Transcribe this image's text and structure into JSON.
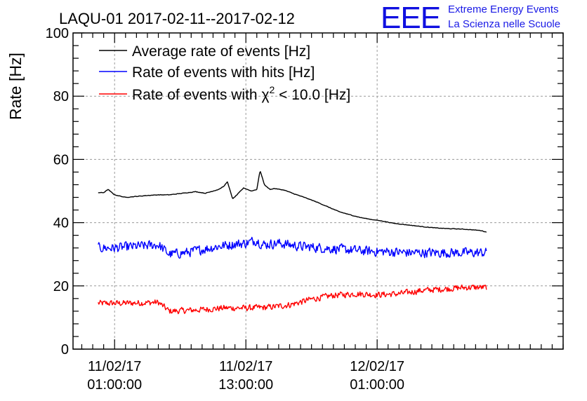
{
  "header": {
    "title": "LAQU-01 2017-02-11--2017-02-12",
    "logo_mark": "EEE",
    "logo_line1": "Extreme Energy Events",
    "logo_line2": "La Scienza nelle Scuole"
  },
  "colors": {
    "average": "#000000",
    "hits": "#0000ff",
    "chi2": "#ff0000",
    "logo": "#1010e0",
    "grid": "#9a9a9a"
  },
  "chart_data": {
    "type": "line",
    "title": "LAQU-01 2017-02-11--2017-02-12",
    "ylabel": "Rate [Hz]",
    "xlabel": "",
    "x_unit": "hours since 2017-02-11 00:00",
    "xlim": [
      -2.8,
      42
    ],
    "ylim": [
      0,
      100
    ],
    "yticks": [
      0,
      20,
      40,
      60,
      80,
      100
    ],
    "xticks": [
      {
        "x": 1,
        "line1": "11/02/17",
        "line2": "01:00:00"
      },
      {
        "x": 13,
        "line1": "11/02/17",
        "line2": "13:00:00"
      },
      {
        "x": 25,
        "line1": "12/02/17",
        "line2": "01:00:00"
      }
    ],
    "grid": true,
    "legend_position": "top-left",
    "series": [
      {
        "name": "Average rate of events [Hz]",
        "color": "#000000",
        "noise": 0.1,
        "x": [
          -0.5,
          0.0,
          0.4,
          1.0,
          2.0,
          3.0,
          4.0,
          5.0,
          6.0,
          7.0,
          7.7,
          8.4,
          9.3,
          10.0,
          10.5,
          11.0,
          11.3,
          11.8,
          12.3,
          12.8,
          13.5,
          14.0,
          14.3,
          14.7,
          15.2,
          15.6,
          16.5,
          17.5,
          18.5,
          19.5,
          20.5,
          21.5,
          22.5,
          23.5,
          24.5,
          25.5,
          26.5,
          27.5,
          28.5,
          29.5,
          30.5,
          31.5,
          32.5,
          33.5,
          34.5,
          35.0
        ],
        "y": [
          49.5,
          49.5,
          50.5,
          48.8,
          48.0,
          48.3,
          48.6,
          48.8,
          48.8,
          49.2,
          49.5,
          49.8,
          49.3,
          50.0,
          50.5,
          51.5,
          53.0,
          47.5,
          49.2,
          51.0,
          50.0,
          50.5,
          56.5,
          52.0,
          50.5,
          50.8,
          50.3,
          49.0,
          47.8,
          46.5,
          45.0,
          43.5,
          42.5,
          41.6,
          41.0,
          40.5,
          39.8,
          39.4,
          39.0,
          38.6,
          38.3,
          38.1,
          38.0,
          37.8,
          37.5,
          37.0
        ]
      },
      {
        "name": "Rate of events with hits [Hz]",
        "color": "#0000ff",
        "noise": 1.9,
        "x": [
          -0.5,
          1.0,
          3.0,
          5.0,
          6.0,
          7.5,
          9.0,
          10.5,
          12.0,
          13.0,
          14.0,
          14.5,
          16.0,
          18.0,
          20.0,
          22.0,
          24.0,
          26.0,
          28.0,
          30.0,
          32.0,
          34.0,
          35.0
        ],
        "y": [
          32.0,
          32.0,
          32.5,
          33.0,
          30.0,
          30.5,
          31.5,
          32.5,
          33.2,
          33.5,
          34.5,
          33.0,
          33.5,
          32.5,
          32.0,
          31.5,
          31.0,
          30.8,
          30.5,
          30.5,
          30.5,
          30.5,
          30.5
        ]
      },
      {
        "name": "Rate of events with χ² < 10.0 [Hz]",
        "legend_prefix": "Rate of events with ",
        "legend_symbol": "χ",
        "legend_sup": "2",
        "legend_suffix": " < 10.0 [Hz]",
        "color": "#ff0000",
        "noise": 1.2,
        "x": [
          -0.5,
          1.0,
          3.0,
          5.0,
          6.0,
          7.5,
          9.0,
          11.0,
          13.0,
          15.0,
          17.0,
          19.0,
          21.0,
          23.0,
          25.0,
          27.0,
          29.0,
          31.0,
          33.0,
          35.0
        ],
        "y": [
          14.5,
          14.5,
          14.6,
          14.8,
          12.0,
          12.2,
          12.5,
          13.0,
          13.0,
          13.2,
          14.0,
          15.8,
          17.0,
          17.5,
          17.2,
          17.5,
          18.5,
          19.0,
          19.5,
          19.5
        ]
      }
    ]
  }
}
